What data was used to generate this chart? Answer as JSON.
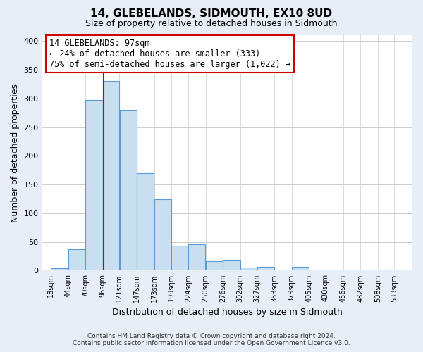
{
  "title": "14, GLEBELANDS, SIDMOUTH, EX10 8UD",
  "subtitle": "Size of property relative to detached houses in Sidmouth",
  "xlabel": "Distribution of detached houses by size in Sidmouth",
  "ylabel": "Number of detached properties",
  "bar_left_edges": [
    18,
    44,
    70,
    96,
    121,
    147,
    173,
    199,
    224,
    250,
    276,
    302,
    327,
    353,
    379,
    405,
    430,
    456,
    482,
    508
  ],
  "bar_widths": [
    26,
    26,
    26,
    25,
    26,
    26,
    26,
    25,
    26,
    26,
    26,
    25,
    26,
    26,
    26,
    25,
    26,
    26,
    26,
    25
  ],
  "bar_heights": [
    4,
    37,
    297,
    330,
    280,
    170,
    124,
    43,
    46,
    16,
    18,
    5,
    7,
    0,
    7,
    0,
    0,
    0,
    0,
    2
  ],
  "bar_color": "#c8dff0",
  "bar_edge_color": "#5b9bd5",
  "tick_labels": [
    "18sqm",
    "44sqm",
    "70sqm",
    "96sqm",
    "121sqm",
    "147sqm",
    "173sqm",
    "199sqm",
    "224sqm",
    "250sqm",
    "276sqm",
    "302sqm",
    "327sqm",
    "353sqm",
    "379sqm",
    "405sqm",
    "430sqm",
    "456sqm",
    "482sqm",
    "508sqm",
    "533sqm"
  ],
  "ylim": [
    0,
    410
  ],
  "yticks": [
    0,
    50,
    100,
    150,
    200,
    250,
    300,
    350,
    400
  ],
  "xlim_left": 5,
  "xlim_right": 560,
  "marker_x": 97,
  "marker_color": "#cc0000",
  "annotation_title": "14 GLEBELANDS: 97sqm",
  "annotation_line1": "← 24% of detached houses are smaller (333)",
  "annotation_line2": "75% of semi-detached houses are larger (1,022) →",
  "footer1": "Contains HM Land Registry data © Crown copyright and database right 2024.",
  "footer2": "Contains public sector information licensed under the Open Government Licence v3.0.",
  "bg_color": "#e8eef8",
  "plot_bg_color": "#ffffff",
  "grid_color": "#cccccc",
  "title_fontsize": 11,
  "subtitle_fontsize": 9,
  "ylabel_fontsize": 9,
  "xlabel_fontsize": 9,
  "tick_fontsize": 8,
  "ann_fontsize": 8.5
}
